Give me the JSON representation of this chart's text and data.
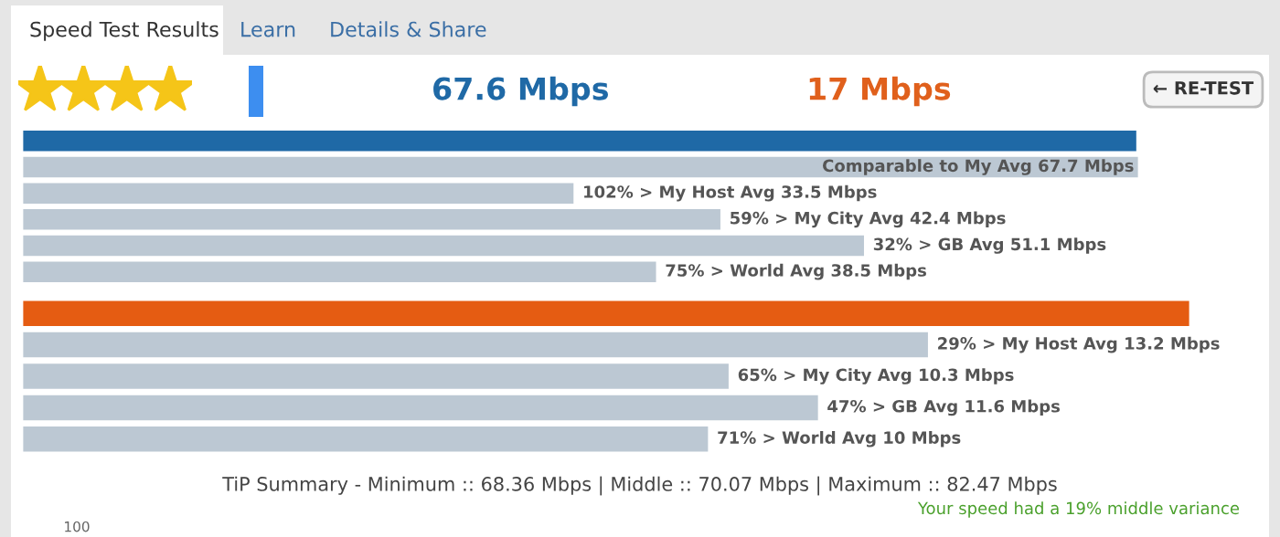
{
  "chart_data": [
    {
      "type": "bar",
      "orientation": "horizontal",
      "tick_labels": false,
      "categories": [
        null,
        null,
        null,
        null,
        null,
        null
      ],
      "values": [
        67.6,
        67.7,
        33.5,
        42.4,
        51.1,
        38.5
      ],
      "colors": [
        "#1f69a6",
        "#bcc8d3",
        "#bcc8d3",
        "#bcc8d3",
        "#bcc8d3",
        "#bcc8d3"
      ],
      "value_labels": [
        null,
        "Comparable to My Avg 67.7 Mbps",
        "102% > My Host Avg 33.5 Mbps",
        "59% > My City Avg 42.4 Mbps",
        "32% > GB Avg 51.1 Mbps",
        "75% > World Avg 38.5 Mbps"
      ],
      "annotations": [
        "Speed Test Results",
        "Learn",
        "Details & Share",
        "67.6 Mbps",
        "17 Mbps",
        "← RE-TEST"
      ]
    },
    {
      "type": "bar",
      "orientation": "horizontal",
      "tick_labels": false,
      "categories": [
        null,
        null,
        null,
        null,
        null
      ],
      "values": [
        17,
        13.2,
        10.3,
        11.6,
        10
      ],
      "colors": [
        "#e55c12",
        "#bcc8d3",
        "#bcc8d3",
        "#bcc8d3",
        "#bcc8d3"
      ],
      "value_labels": [
        null,
        "29% > My Host Avg 13.2 Mbps",
        "65% > My City Avg 10.3 Mbps",
        "47% > GB Avg 11.6 Mbps",
        "71% > World Avg 10 Mbps"
      ],
      "annotations": [
        "TiP Summary - Minimum :: 68.36 Mbps | Middle :: 70.07 Mbps | Maximum :: 82.47 Mbps",
        "Your speed had a 19% middle variance",
        "100"
      ]
    }
  ]
}
